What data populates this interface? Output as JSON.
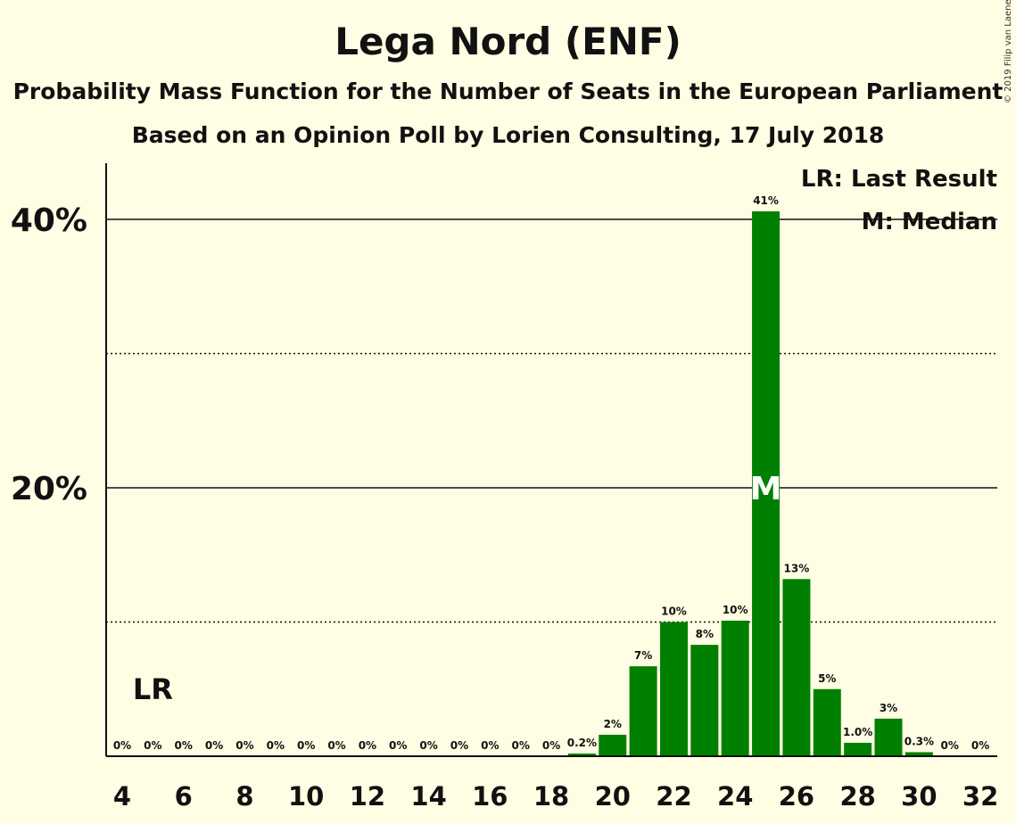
{
  "title": "Lega Nord (ENF)",
  "subtitle": "Probability Mass Function for the Number of Seats in the European Parliament",
  "source": "Based on an Opinion Poll by Lorien Consulting, 17 July 2018",
  "copyright": "© 2019 Filip van Laenen",
  "colors": {
    "background": "#fffde3",
    "bar": "#008000",
    "text": "#111111"
  },
  "chart_data": {
    "type": "bar",
    "title": "Lega Nord (ENF)",
    "xlabel": "",
    "ylabel": "",
    "x_ticks": [
      "4",
      "6",
      "8",
      "10",
      "12",
      "14",
      "16",
      "18",
      "20",
      "22",
      "24",
      "26",
      "28",
      "30",
      "32"
    ],
    "y_ticks": [
      "20%",
      "40%"
    ],
    "ylim": [
      0,
      44
    ],
    "grid": {
      "solid": [
        20,
        40
      ],
      "dotted": [
        10,
        30
      ]
    },
    "categories": [
      4,
      5,
      6,
      7,
      8,
      9,
      10,
      11,
      12,
      13,
      14,
      15,
      16,
      17,
      18,
      19,
      20,
      21,
      22,
      23,
      24,
      25,
      26,
      27,
      28,
      29,
      30,
      31,
      32
    ],
    "values": [
      0,
      0,
      0,
      0,
      0,
      0,
      0,
      0,
      0,
      0,
      0,
      0,
      0,
      0,
      0,
      0.2,
      1.6,
      6.7,
      10.0,
      8.3,
      10.1,
      40.6,
      13.2,
      5.0,
      1.0,
      2.8,
      0.3,
      0,
      0
    ],
    "labels": [
      "0%",
      "0%",
      "0%",
      "0%",
      "0%",
      "0%",
      "0%",
      "0%",
      "0%",
      "0%",
      "0%",
      "0%",
      "0%",
      "0%",
      "0%",
      "0.2%",
      "2%",
      "7%",
      "10%",
      "8%",
      "10%",
      "41%",
      "13%",
      "5%",
      "1.0%",
      "3%",
      "0.3%",
      "0%",
      "0%"
    ],
    "last_result": {
      "seat": 5,
      "label": "LR"
    },
    "median": {
      "seat": 25,
      "label": "M"
    },
    "legend": [
      "LR: Last Result",
      "M: Median"
    ],
    "legend_position": "top-right"
  }
}
